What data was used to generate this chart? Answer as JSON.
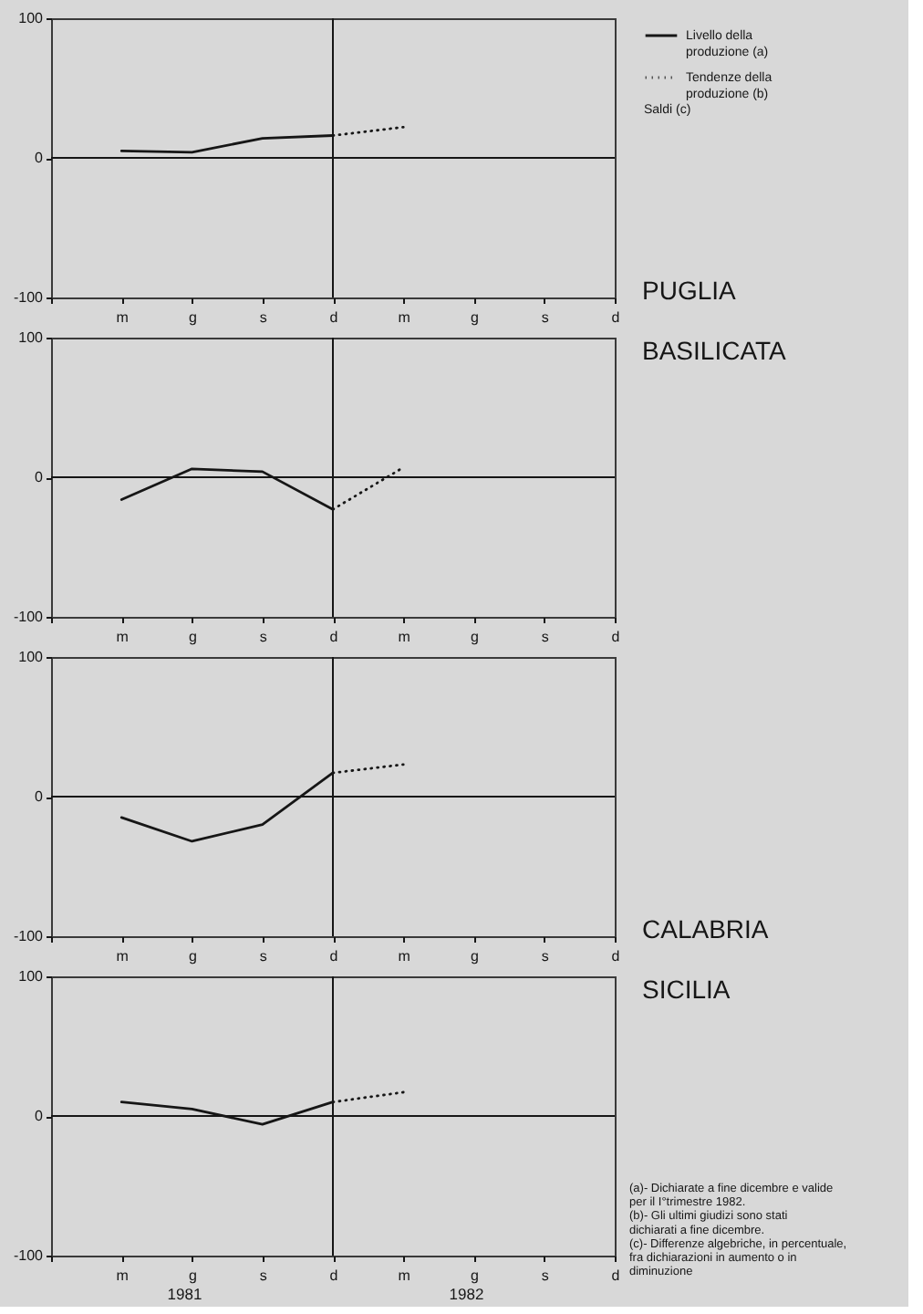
{
  "chart_data": [
    {
      "type": "line",
      "annotations": [
        "PUGLIA"
      ],
      "categories": [
        null,
        "m",
        "g",
        "s",
        "d",
        "m",
        "g",
        "s",
        "d"
      ],
      "ylim": [
        -100,
        100
      ],
      "yticks": [
        -100,
        0,
        100
      ],
      "ref_lines": [
        {
          "axis": "x",
          "value": "d"
        },
        {
          "axis": "y",
          "value": 0
        }
      ],
      "legend": "right",
      "legend_title": "Saldi (c)",
      "series": [
        {
          "name": "Livello della produzione (a)",
          "color": "#161616",
          "line_style": "solid",
          "values": [
            null,
            5,
            4,
            14,
            16,
            null,
            null,
            null,
            null
          ]
        },
        {
          "name": "Tendenze della produzione (b)",
          "color": "#161616",
          "line_style": "dotted",
          "values": [
            null,
            null,
            null,
            null,
            16,
            22,
            null,
            null,
            null
          ]
        }
      ]
    },
    {
      "type": "line",
      "annotations": [
        "BASILICATA"
      ],
      "categories": [
        null,
        "m",
        "g",
        "s",
        "d",
        "m",
        "g",
        "s",
        "d"
      ],
      "ylim": [
        -100,
        100
      ],
      "yticks": [
        -100,
        0,
        100
      ],
      "ref_lines": [
        {
          "axis": "x",
          "value": "d"
        },
        {
          "axis": "y",
          "value": 0
        }
      ],
      "series": [
        {
          "color": "#161616",
          "line_style": "solid",
          "values": [
            null,
            -16,
            6,
            4,
            -23,
            null,
            null,
            null,
            null
          ]
        },
        {
          "color": "#161616",
          "line_style": "dotted",
          "values": [
            null,
            null,
            null,
            null,
            -23,
            7,
            null,
            null,
            null
          ]
        }
      ]
    },
    {
      "type": "line",
      "annotations": [
        "CALABRIA"
      ],
      "categories": [
        null,
        "m",
        "g",
        "s",
        "d",
        "m",
        "g",
        "s",
        "d"
      ],
      "ylim": [
        -100,
        100
      ],
      "yticks": [
        -100,
        0,
        100
      ],
      "ref_lines": [
        {
          "axis": "x",
          "value": "d"
        },
        {
          "axis": "y",
          "value": 0
        }
      ],
      "series": [
        {
          "color": "#161616",
          "line_style": "solid",
          "values": [
            null,
            -15,
            -32,
            -20,
            17,
            null,
            null,
            null,
            null
          ]
        },
        {
          "color": "#161616",
          "line_style": "dotted",
          "values": [
            null,
            null,
            null,
            null,
            17,
            23,
            null,
            null,
            null
          ]
        }
      ]
    },
    {
      "type": "line",
      "annotations": [
        "SICILIA",
        "1981",
        "1982"
      ],
      "categories": [
        null,
        "m",
        "g",
        "s",
        "d",
        "m",
        "g",
        "s",
        "d"
      ],
      "ylim": [
        -100,
        100
      ],
      "yticks": [
        -100,
        0,
        100
      ],
      "ref_lines": [
        {
          "axis": "x",
          "value": "d"
        },
        {
          "axis": "y",
          "value": 0
        }
      ],
      "series": [
        {
          "color": "#161616",
          "line_style": "solid",
          "values": [
            null,
            10,
            5,
            -6,
            10,
            null,
            null,
            null,
            null
          ]
        },
        {
          "color": "#161616",
          "line_style": "dotted",
          "values": [
            null,
            null,
            null,
            null,
            10,
            17,
            null,
            null,
            null
          ]
        }
      ]
    },
    {
      "type": "other",
      "annotations": [
        "(a)- Dichiarate a fine dicembre e valide per il I°trimestre 1982.",
        "(b)- Gli ultimi giudizi sono stati dichiarati a fine dicembre.",
        "(c)- Differenze algebriche, in percentuale, fra dichiarazioni in aumento o in diminuzione"
      ]
    }
  ]
}
